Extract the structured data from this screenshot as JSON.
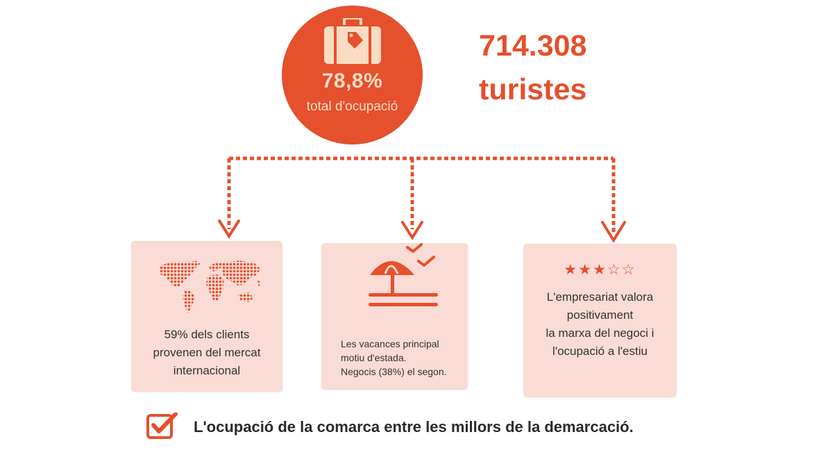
{
  "occupancy": {
    "percentage": "78,8%",
    "label": "total d'ocupació"
  },
  "tourists": {
    "number": "714.308",
    "unit": "turistes"
  },
  "cards": [
    {
      "icon": "world-map-icon",
      "lines": [
        "59% dels clients",
        "provenen del mercat",
        "internacional"
      ]
    },
    {
      "icon": "beach-umbrella-icon",
      "lines": [
        "Les vacances principal",
        "motiu d'estada.",
        "Negocis (38%) el segon."
      ]
    },
    {
      "icon": "rating-stars-icon",
      "rating": 3,
      "rating_max": 5,
      "lines": [
        "L'empresariat valora",
        "positivament",
        "la marxa del negoci i",
        "l'ocupació a l'estiu"
      ]
    }
  ],
  "footer": {
    "text": "L'ocupació de la comarca entre les millors de la demarcació."
  },
  "colors": {
    "accent": "#e5502d",
    "card_background": "#fadbd5",
    "circle_text": "#f9dcc2",
    "body_text": "#333333"
  }
}
